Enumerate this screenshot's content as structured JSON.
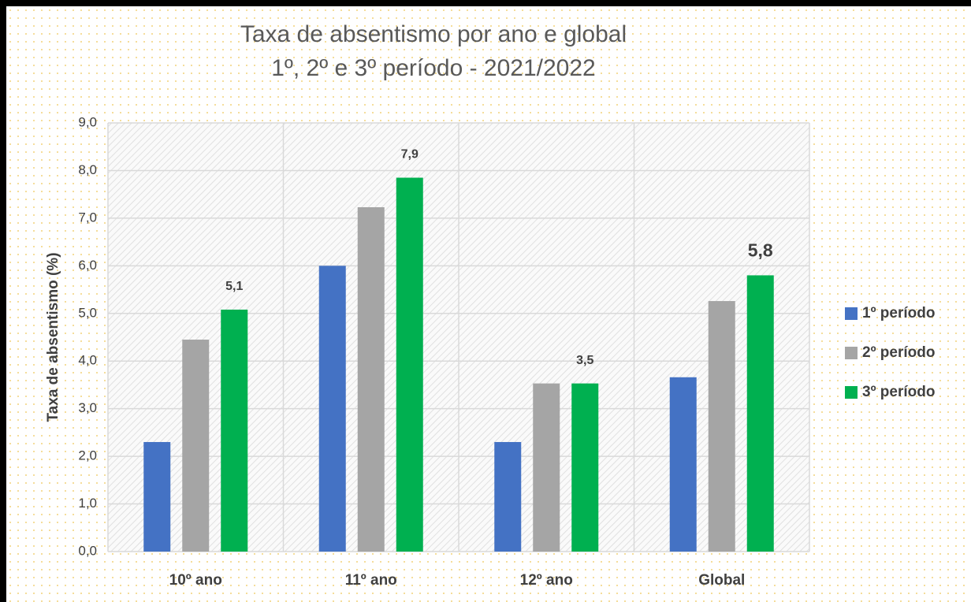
{
  "chart_data": {
    "type": "bar",
    "title": [
      "Taxa de absentismo por ano e global",
      "1º, 2º e 3º período - 2021/2022"
    ],
    "y_label": "Taxa de absentismo (%)",
    "categories": [
      "10º ano",
      "11º ano",
      "12º ano",
      "Global"
    ],
    "series": [
      {
        "name": "1º período",
        "color": "#4472c4",
        "values": [
          2.3,
          6.0,
          2.3,
          3.66
        ]
      },
      {
        "name": "2º período",
        "color": "#a5a5a5",
        "values": [
          4.45,
          7.23,
          3.53,
          5.26
        ]
      },
      {
        "name": "3º período",
        "color": "#00b050",
        "values": [
          5.08,
          7.85,
          3.53,
          5.8
        ],
        "value_labels": [
          "5,1",
          "7,9",
          "3,5",
          "5,8"
        ]
      }
    ],
    "ylim": [
      0,
      9
    ],
    "yticks": [
      {
        "value": 0,
        "label": "0,0"
      },
      {
        "value": 1,
        "label": "1,0"
      },
      {
        "value": 2,
        "label": "2,0"
      },
      {
        "value": 3,
        "label": "3,0"
      },
      {
        "value": 4,
        "label": "4,0"
      },
      {
        "value": 5,
        "label": "5,0"
      },
      {
        "value": 6,
        "label": "6,0"
      },
      {
        "value": 7,
        "label": "7,0"
      },
      {
        "value": 8,
        "label": "8,0"
      },
      {
        "value": 9,
        "label": "9,0"
      }
    ],
    "grid": true,
    "legend": "right"
  }
}
